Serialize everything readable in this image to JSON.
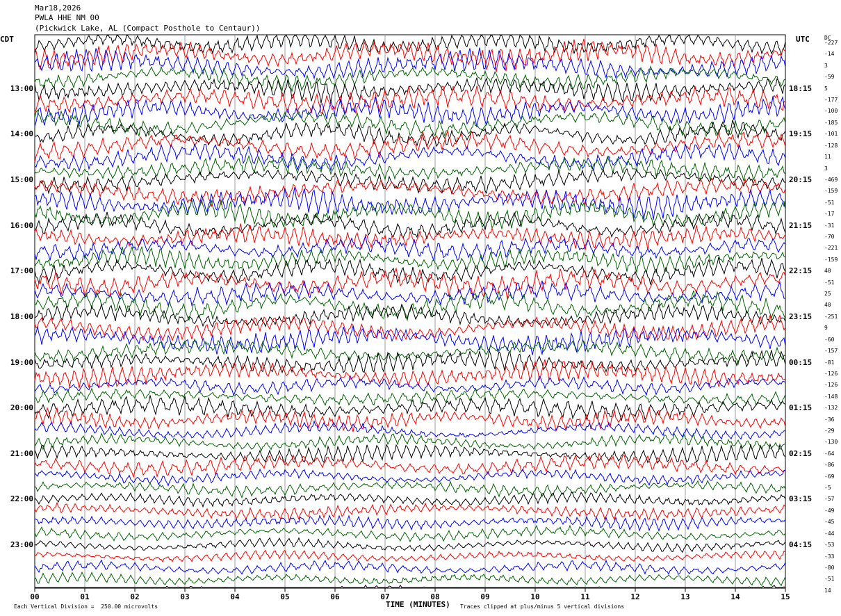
{
  "header": {
    "date": "Mar18,2026",
    "station": "PWLA HHE NM 00",
    "location": "(Pickwick Lake, AL (Compact Posthole to Centaur))"
  },
  "left_zone": "CDT",
  "right_zone": "UTC",
  "dc_label": "DC",
  "chart_data": {
    "type": "line",
    "title": "",
    "xlabel": "TIME (MINUTES)",
    "ylabel": "",
    "xlim": [
      0,
      15
    ],
    "x_ticks": [
      "00",
      "01",
      "02",
      "03",
      "04",
      "05",
      "06",
      "07",
      "08",
      "09",
      "10",
      "11",
      "12",
      "13",
      "14",
      "15"
    ],
    "hour_labels_local": [
      "13:00",
      "14:00",
      "15:00",
      "16:00",
      "17:00",
      "18:00",
      "19:00",
      "20:00",
      "21:00",
      "22:00",
      "23:00"
    ],
    "hour_labels_utc": [
      "18:15",
      "19:15",
      "20:15",
      "21:15",
      "22:15",
      "23:15",
      "00:15",
      "01:15",
      "02:15",
      "03:15",
      "04:15"
    ],
    "trace_colors": [
      "#000000",
      "#ff0000",
      "#0000ff",
      "#006400"
    ],
    "dc_offsets": [
      "-227",
      "-14",
      "3",
      "-59",
      "5",
      "-177",
      "-100",
      "-185",
      "-101",
      "-128",
      "11",
      "3",
      "-469",
      "-159",
      "-51",
      "-17",
      "-31",
      "-70",
      "-221",
      "-159",
      "40",
      "-51",
      "25",
      "40",
      "-251",
      "9",
      "-60",
      "-157",
      "-81",
      "-126",
      "-126",
      "-148",
      "-132",
      "-36",
      "-29",
      "-130",
      "-64",
      "-86",
      "-69",
      "-5",
      "-57",
      "-49",
      "-45",
      "-44",
      "-53",
      "-33",
      "-80",
      "-51",
      "14"
    ],
    "grid": true
  },
  "footer": {
    "scale": "Each Vertical Division =  250.00 microvolts",
    "clip": "Traces clipped at plus/minus 5 vertical divisions"
  }
}
